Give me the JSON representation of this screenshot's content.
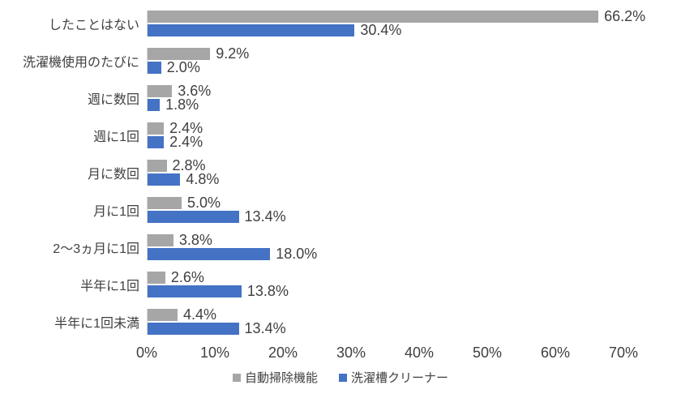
{
  "chart_data": {
    "type": "bar",
    "orientation": "horizontal",
    "title": "",
    "xlabel": "",
    "ylabel": "",
    "xlim": [
      0,
      70
    ],
    "x_ticks": [
      "0%",
      "10%",
      "20%",
      "30%",
      "40%",
      "50%",
      "60%",
      "70%"
    ],
    "grid": false,
    "data_labels": true,
    "legend_position": "bottom",
    "categories": [
      "したことはない",
      "洗濯機使用のたびに",
      "週に数回",
      "週に1回",
      "月に数回",
      "月に1回",
      "2～3ヵ月に1回",
      "半年に1回",
      "半年に1回未満"
    ],
    "series": [
      {
        "name": "自動掃除機能",
        "color": "#A6A6A6",
        "values": [
          66.2,
          9.2,
          3.6,
          2.4,
          2.8,
          5.0,
          3.8,
          2.6,
          4.4
        ],
        "labels": [
          "66.2%",
          "9.2%",
          "3.6%",
          "2.4%",
          "2.8%",
          "5.0%",
          "3.8%",
          "2.6%",
          "4.4%"
        ]
      },
      {
        "name": "洗濯槽クリーナー",
        "color": "#4472C4",
        "values": [
          30.4,
          2.0,
          1.8,
          2.4,
          4.8,
          13.4,
          18.0,
          13.8,
          13.4
        ],
        "labels": [
          "30.4%",
          "2.0%",
          "1.8%",
          "2.4%",
          "4.8%",
          "13.4%",
          "18.0%",
          "13.8%",
          "13.4%"
        ]
      }
    ],
    "axis_line_color": "#d9d9d9",
    "text_color": "#3f3f3f"
  }
}
